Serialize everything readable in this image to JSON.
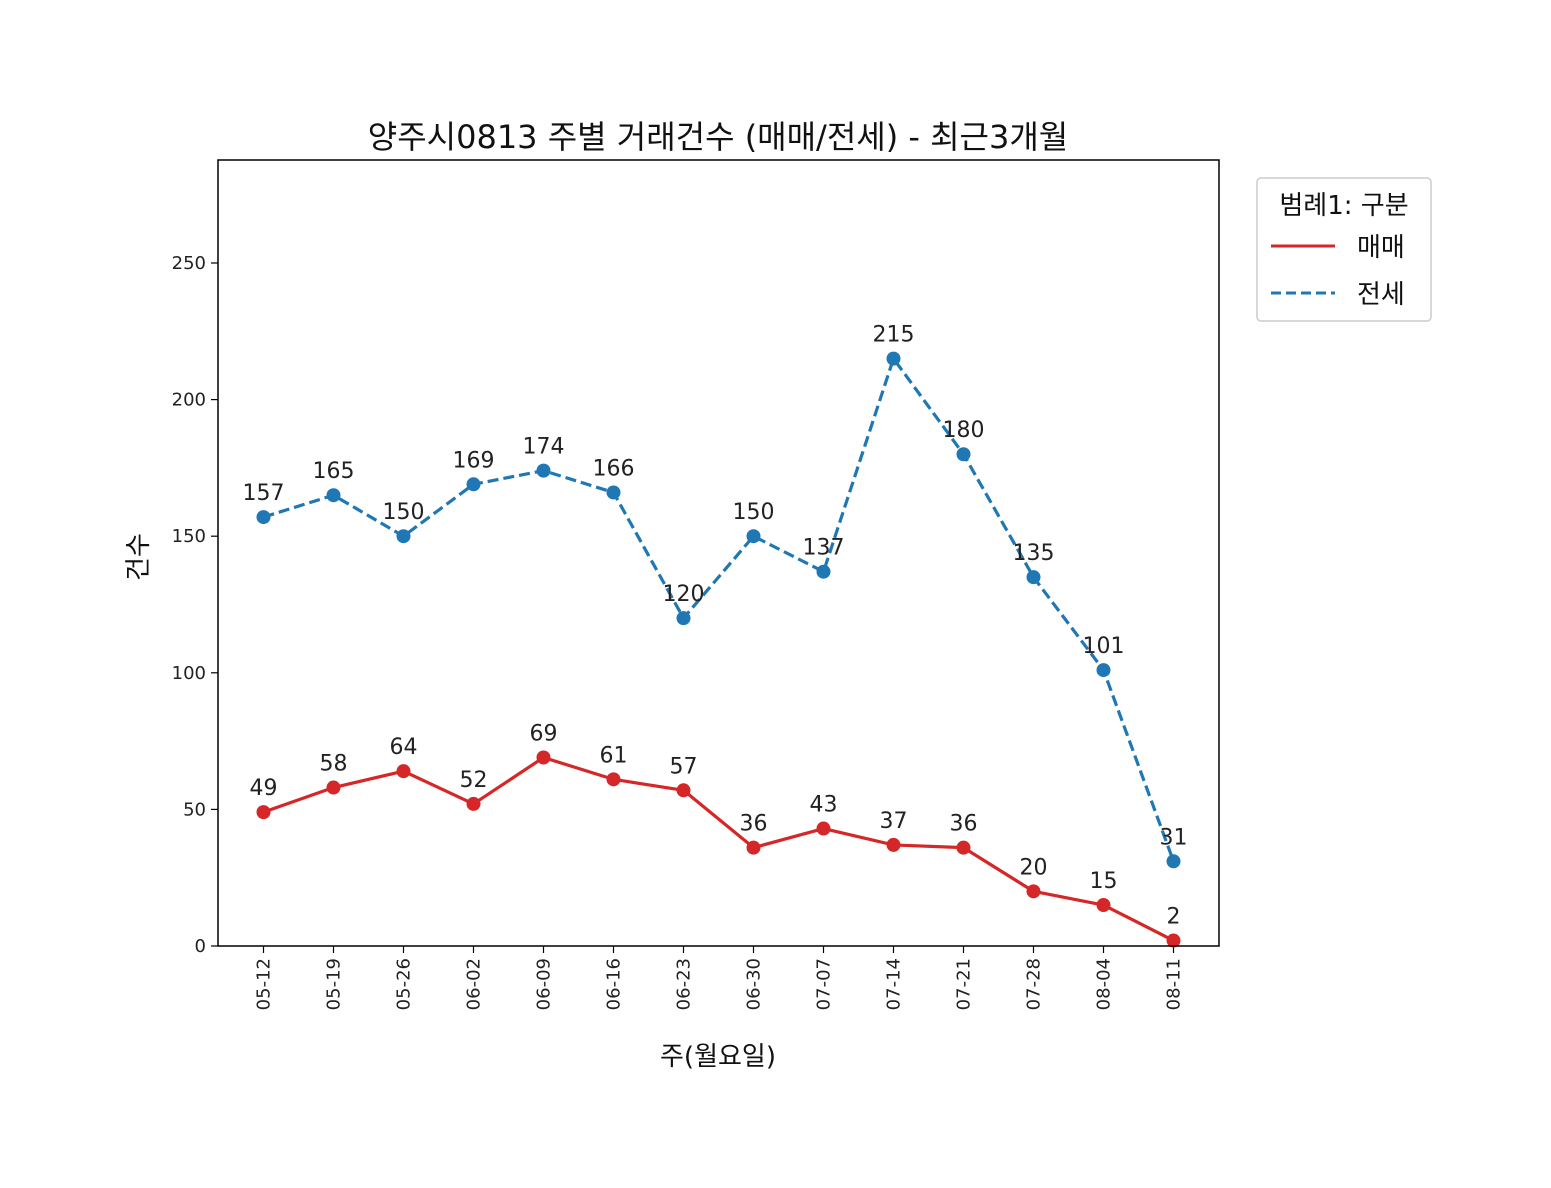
{
  "chart_data": {
    "type": "line",
    "title": "양주시0813 주별 거래건수 (매매/전세) - 최근3개월",
    "xlabel": "주(월요일)",
    "ylabel": "건수",
    "categories": [
      "05-12",
      "05-19",
      "05-26",
      "06-02",
      "06-09",
      "06-16",
      "06-23",
      "06-30",
      "07-07",
      "07-14",
      "07-21",
      "07-28",
      "08-04",
      "08-11"
    ],
    "ylim": [
      0,
      287.7
    ],
    "yticks": [
      0,
      50,
      100,
      150,
      200,
      250
    ],
    "grid": false,
    "legend": {
      "title": "범례1: 구분",
      "placement": "outside-top-right"
    },
    "series": [
      {
        "name": "매매",
        "color": "#d62728",
        "linestyle": "solid",
        "marker": "circle",
        "values": [
          49,
          58,
          64,
          52,
          69,
          61,
          57,
          36,
          43,
          37,
          36,
          20,
          15,
          2
        ]
      },
      {
        "name": "전세",
        "color": "#1f77b4",
        "linestyle": "dashed",
        "marker": "circle",
        "values": [
          157,
          165,
          150,
          169,
          174,
          166,
          120,
          150,
          137,
          215,
          180,
          135,
          101,
          31
        ]
      }
    ]
  }
}
